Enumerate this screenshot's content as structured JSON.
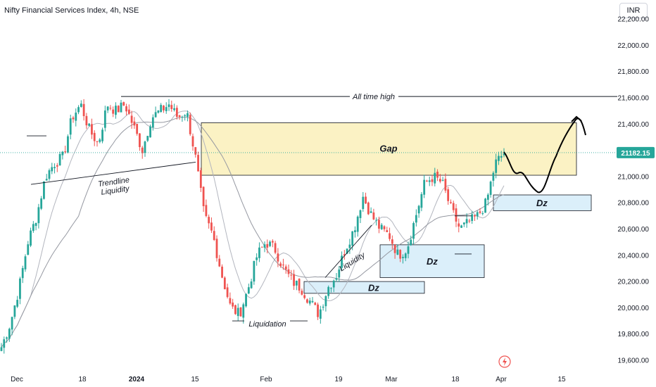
{
  "header": {
    "title": "Nifty Financial Services Index, 4h, NSE",
    "currency": "INR"
  },
  "chart_data": {
    "type": "candlestick",
    "title": "Nifty Financial Services Index, 4h, NSE",
    "currency": "INR",
    "y_ticks": [
      19600,
      19800,
      20000,
      20200,
      20400,
      20600,
      20800,
      21000,
      21200,
      21400,
      21600,
      21800,
      22000,
      22200
    ],
    "ylim": [
      19550,
      22250
    ],
    "x_ticks": [
      "Dec",
      "18",
      "2024",
      "15",
      "Feb",
      "19",
      "Mar",
      "18",
      "Apr",
      "15"
    ],
    "last_price": "21182.15",
    "annotations": {
      "all_time_high": "All time high",
      "gap": "Gap",
      "dz": "Dz",
      "trendline_liquidity": "Trendline\nLiquidity",
      "liquidity": "Liquidity",
      "liquidation": "Liquidation"
    },
    "levels": {
      "all_time_high": 21610,
      "liquidation": 19900
    },
    "zones": [
      {
        "label": "Gap",
        "from": 21010,
        "to": 21410,
        "color": "#fbf2c4"
      },
      {
        "label": "Dz",
        "from": 20110,
        "to": 20200,
        "color": "#dbeffa"
      },
      {
        "label": "Dz",
        "from": 20230,
        "to": 20480,
        "color": "#dbeffa"
      },
      {
        "label": "Dz",
        "from": 20740,
        "to": 20860,
        "color": "#dbeffa"
      }
    ],
    "close_path_approx": [
      19700,
      19880,
      20150,
      20500,
      20700,
      21000,
      21100,
      21150,
      21450,
      21550,
      21350,
      21250,
      21550,
      21500,
      21550,
      21380,
      21200,
      21450,
      21500,
      21550,
      21450,
      21500,
      21150,
      20700,
      20550,
      20250,
      20000,
      19950,
      20150,
      20400,
      20500,
      20450,
      20300,
      20200,
      20150,
      20050,
      19950,
      20150,
      20250,
      20450,
      20600,
      20850,
      20700,
      20600,
      20550,
      20400,
      20450,
      20700,
      20950,
      21000,
      20950,
      20750,
      20600,
      20650,
      20700,
      20800,
      21100,
      21180
    ],
    "colors": {
      "up": "#26a69a",
      "down": "#ef5350",
      "ma_fast": "#b2b5be",
      "ma_slow": "#9598a1",
      "price_tag": "#26a69a"
    }
  }
}
